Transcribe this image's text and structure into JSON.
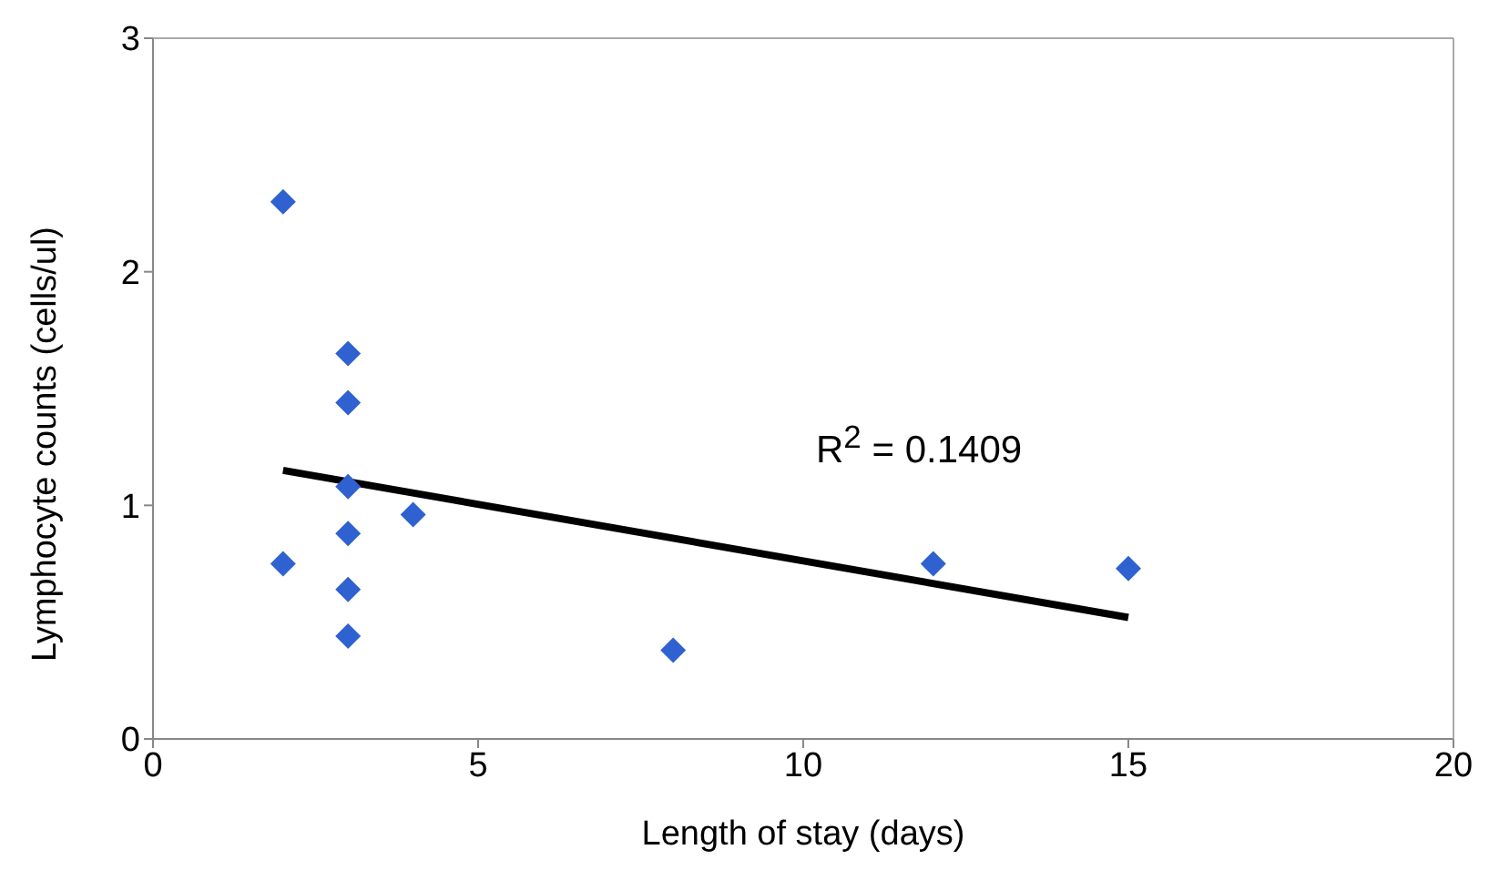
{
  "chart_data": {
    "type": "scatter",
    "xlabel": "Length of stay (days)",
    "ylabel": "Lymphocyte counts (cells/ul)",
    "xlim": [
      0,
      20
    ],
    "xticks": [
      0,
      5,
      10,
      15,
      20
    ],
    "ylim": [
      0,
      3
    ],
    "yticks": [
      0,
      1,
      2,
      3
    ],
    "grid": false,
    "series": [
      {
        "marker": "diamond",
        "color": "#2f62d0",
        "x": [
          2,
          2,
          3,
          3,
          3,
          3,
          3,
          3,
          4,
          8,
          12,
          15
        ],
        "values": [
          2.3,
          0.75,
          1.65,
          1.44,
          1.08,
          0.88,
          0.64,
          0.44,
          0.96,
          0.38,
          0.75,
          0.73
        ]
      },
      {
        "type": "line",
        "color": "#000000",
        "x": [
          2,
          15
        ],
        "values": [
          1.15,
          0.52
        ]
      }
    ],
    "annotations": [
      "R$^{2}$ = 0.1409"
    ]
  }
}
